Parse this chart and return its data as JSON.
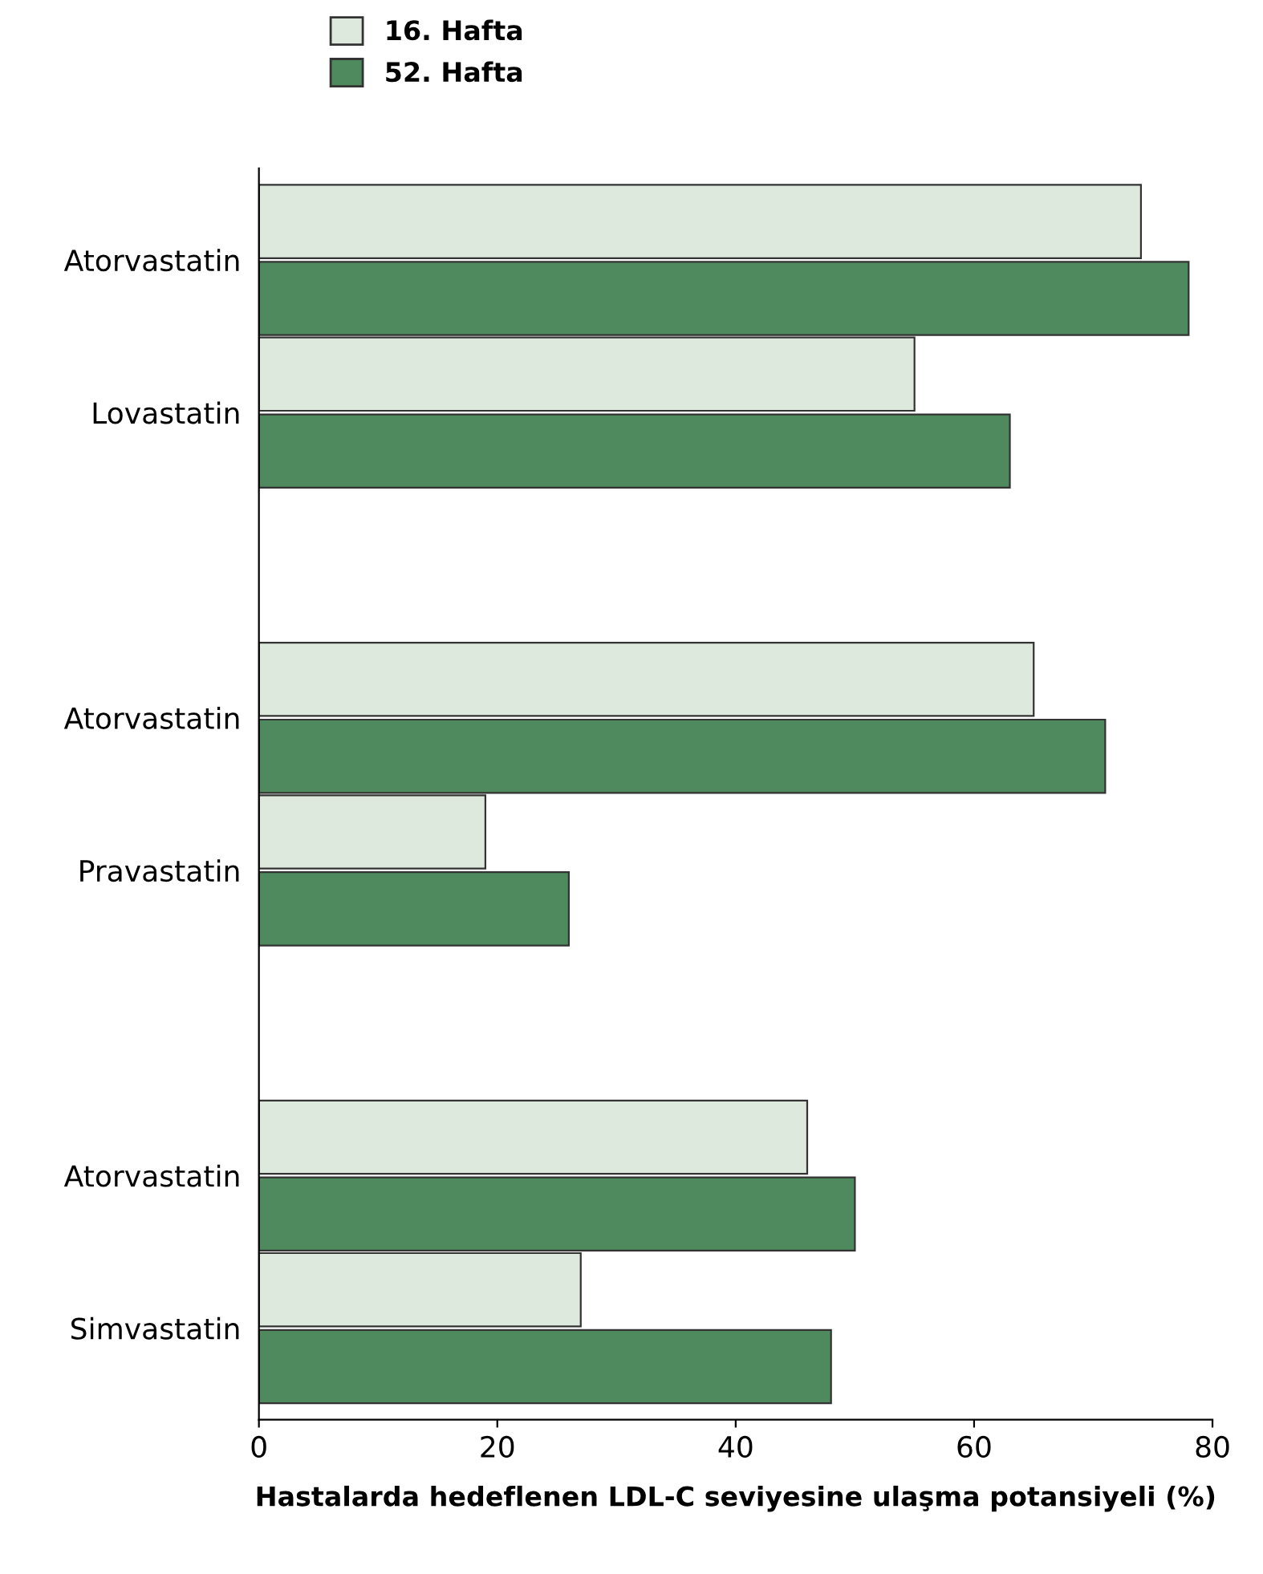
{
  "chart_data": {
    "type": "bar",
    "orientation": "horizontal",
    "categories": [
      "Atorvastatin",
      "Lovastatin",
      null,
      "Atorvastatin",
      "Pravastatin",
      null,
      "Atorvastatin",
      "Simvastatin"
    ],
    "series": [
      {
        "name": "16. Hafta",
        "color": "#dde9dc",
        "values": [
          74,
          55,
          null,
          65,
          19,
          null,
          46,
          27
        ]
      },
      {
        "name": "52. Hafta",
        "color": "#4e8a5e",
        "values": [
          78,
          63,
          null,
          71,
          26,
          null,
          50,
          48
        ]
      }
    ],
    "xlabel": "Hastalarda hedeflenen LDL-C seviyesine ulaşma potansiyeli (%)",
    "xlim": [
      0,
      80
    ],
    "xticks": [
      0,
      20,
      40,
      60,
      80
    ],
    "grid": false,
    "legend": "top"
  }
}
